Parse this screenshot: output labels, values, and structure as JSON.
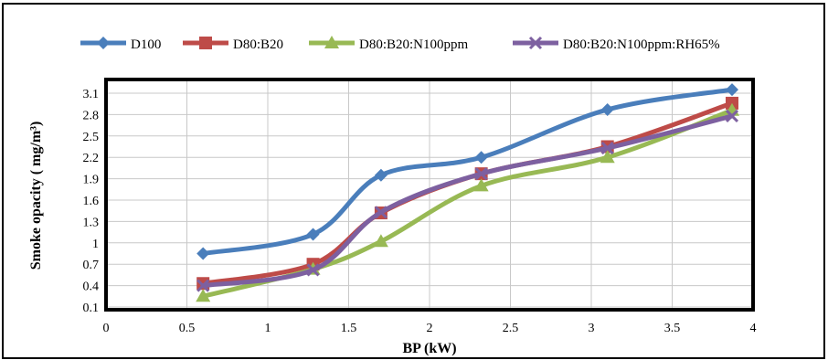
{
  "chart_data": {
    "type": "line",
    "xlabel": "BP (kW)",
    "ylabel": "Smoke opacity ( mg/m³)",
    "xlim": [
      0,
      4
    ],
    "ylim": [
      0.1,
      3.1
    ],
    "xticks": [
      "0",
      "0.5",
      "1",
      "1.5",
      "2",
      "2.5",
      "3",
      "3.5",
      "4"
    ],
    "yticks": [
      "0.1",
      "0.4",
      "0.7",
      "1",
      "1.3",
      "1.6",
      "1.9",
      "2.2",
      "2.5",
      "2.8",
      "3.1"
    ],
    "grid": true,
    "legend_position": "top",
    "series": [
      {
        "name": "D100",
        "color": "#4a7ebb",
        "marker": "diamond",
        "x": [
          0.6,
          1.28,
          1.7,
          2.32,
          3.1,
          3.87
        ],
        "y": [
          0.85,
          1.12,
          1.95,
          2.2,
          2.87,
          3.15
        ]
      },
      {
        "name": "D80:B20",
        "color": "#be4b48",
        "marker": "square",
        "x": [
          0.6,
          1.28,
          1.7,
          2.32,
          3.1,
          3.87
        ],
        "y": [
          0.43,
          0.7,
          1.42,
          1.97,
          2.35,
          2.96
        ]
      },
      {
        "name": "D80:B20:N100ppm",
        "color": "#98b954",
        "marker": "triangle",
        "x": [
          0.6,
          1.28,
          1.7,
          2.32,
          3.1,
          3.87
        ],
        "y": [
          0.25,
          0.63,
          1.02,
          1.8,
          2.2,
          2.86
        ]
      },
      {
        "name": "D80:B20:N100ppm:RH65%",
        "color": "#7d60a0",
        "marker": "x",
        "x": [
          0.6,
          1.28,
          1.7,
          2.32,
          3.1,
          3.87
        ],
        "y": [
          0.4,
          0.62,
          1.43,
          1.97,
          2.33,
          2.78
        ]
      }
    ]
  }
}
